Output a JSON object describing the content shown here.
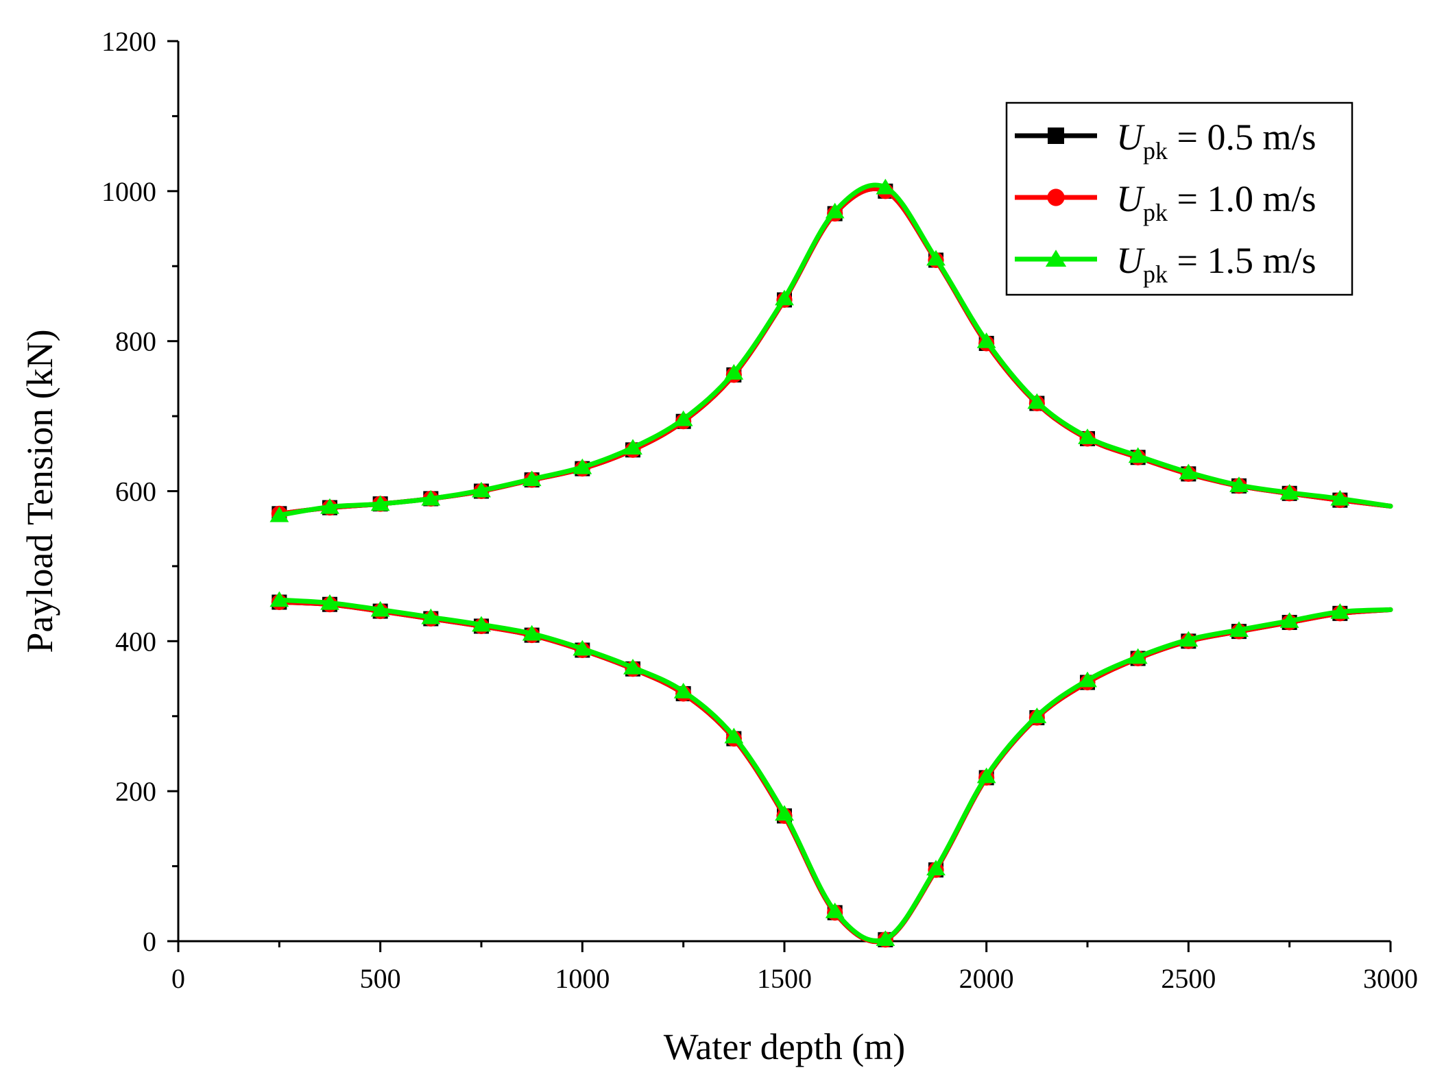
{
  "chart_data": {
    "type": "line",
    "title": "",
    "xlabel": "Water depth (m)",
    "ylabel": "Payload Tension (kN)",
    "xlim": [
      0,
      3000
    ],
    "ylim": [
      0,
      1200
    ],
    "xticks": [
      0,
      500,
      1000,
      1500,
      2000,
      2500,
      3000
    ],
    "yticks": [
      0,
      200,
      400,
      600,
      800,
      1000,
      1200
    ],
    "grid": false,
    "legend_position": "top-right",
    "marker_x": [
      250,
      375,
      500,
      625,
      750,
      875,
      1000,
      1125,
      1250,
      1375,
      1500,
      1625,
      1750,
      1875,
      2000,
      2125,
      2250,
      2375,
      2500,
      2625,
      2750,
      2875
    ],
    "line_end_x": 3000,
    "series": [
      {
        "name": "U_pk = 0.5 m/s",
        "legend_symbol": "U",
        "legend_sub": "pk",
        "legend_value": " = 0.5 m/s",
        "color": "#000000",
        "marker": "square",
        "upper": [
          570,
          578,
          583,
          590,
          600,
          615,
          630,
          655,
          693,
          755,
          855,
          970,
          1000,
          908,
          797,
          717,
          670,
          645,
          623,
          607,
          597,
          588
        ],
        "lower": [
          452,
          449,
          440,
          430,
          420,
          408,
          388,
          363,
          330,
          270,
          167,
          38,
          2,
          95,
          218,
          298,
          345,
          377,
          400,
          413,
          425,
          437
        ],
        "upper_end": 580,
        "lower_end": 442
      },
      {
        "name": "U_pk = 1.0 m/s",
        "legend_symbol": "U",
        "legend_sub": "pk",
        "legend_value": " = 1.0 m/s",
        "color": "#ff0000",
        "marker": "circle",
        "upper": [
          570,
          578,
          583,
          590,
          600,
          615,
          630,
          655,
          693,
          755,
          855,
          970,
          1000,
          908,
          797,
          717,
          670,
          645,
          623,
          607,
          597,
          588
        ],
        "lower": [
          452,
          449,
          440,
          430,
          420,
          408,
          388,
          363,
          330,
          270,
          167,
          38,
          2,
          95,
          218,
          298,
          345,
          377,
          400,
          413,
          425,
          437
        ],
        "upper_end": 580,
        "lower_end": 442
      },
      {
        "name": "U_pk = 1.5 m/s",
        "legend_symbol": "U",
        "legend_sub": "pk",
        "legend_value": " = 1.5 m/s",
        "color": "#00ee00",
        "marker": "triangle",
        "upper": [
          568,
          579,
          583,
          590,
          601,
          616,
          632,
          658,
          696,
          758,
          857,
          973,
          1005,
          910,
          800,
          719,
          672,
          647,
          625,
          608,
          598,
          590
        ],
        "lower": [
          455,
          451,
          442,
          432,
          422,
          410,
          390,
          365,
          333,
          273,
          170,
          40,
          3,
          97,
          220,
          300,
          348,
          379,
          402,
          415,
          427,
          439
        ],
        "upper_end": 580,
        "lower_end": 442
      }
    ]
  }
}
